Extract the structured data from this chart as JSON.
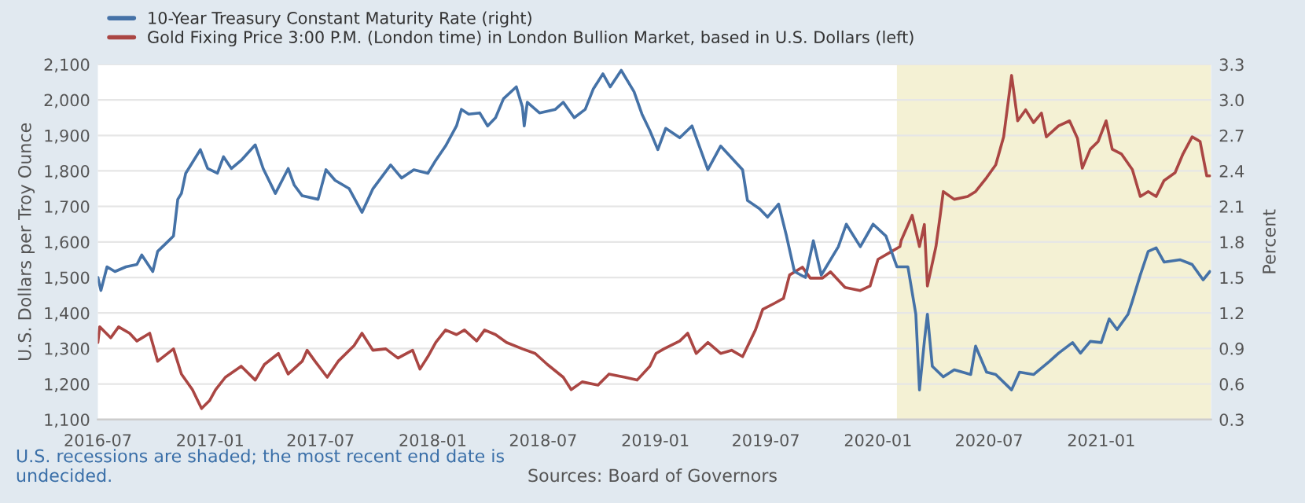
{
  "chart_data": {
    "type": "line",
    "ylabel": "U.S. Dollars per Troy Ounce",
    "y2label": "Percent",
    "annotations": [
      "U.S. recessions are shaded; the most recent end date is undecided.",
      "Sources: Board of Governors"
    ],
    "legend": "top left",
    "grid": "y",
    "xlim": [
      "2016-07-01",
      "2021-06-30"
    ],
    "xticks": [
      "2016-07",
      "2017-01",
      "2017-07",
      "2018-01",
      "2018-07",
      "2019-01",
      "2019-07",
      "2020-01",
      "2020-07",
      "2021-01"
    ],
    "ylim": [
      1100,
      2100
    ],
    "yticks": [
      {
        "value": 1100,
        "label": "1,100"
      },
      {
        "value": 1200,
        "label": "1,200"
      },
      {
        "value": 1300,
        "label": "1,300"
      },
      {
        "value": 1400,
        "label": "1,400"
      },
      {
        "value": 1500,
        "label": "1,500"
      },
      {
        "value": 1600,
        "label": "1,600"
      },
      {
        "value": 1700,
        "label": "1,700"
      },
      {
        "value": 1800,
        "label": "1,800"
      },
      {
        "value": 1900,
        "label": "1,900"
      },
      {
        "value": 2000,
        "label": "2,000"
      },
      {
        "value": 2100,
        "label": "2,100"
      }
    ],
    "y2lim": [
      0.3,
      3.3
    ],
    "y2ticks": [
      {
        "value": 0.3,
        "label": "0.3"
      },
      {
        "value": 0.6,
        "label": "0.6"
      },
      {
        "value": 0.9,
        "label": "0.9"
      },
      {
        "value": 1.2,
        "label": "1.2"
      },
      {
        "value": 1.5,
        "label": "1.5"
      },
      {
        "value": 1.8,
        "label": "1.8"
      },
      {
        "value": 2.1,
        "label": "2.1"
      },
      {
        "value": 2.4,
        "label": "2.4"
      },
      {
        "value": 2.7,
        "label": "2.7"
      },
      {
        "value": 3.0,
        "label": "3.0"
      },
      {
        "value": 3.3,
        "label": "3.3"
      }
    ],
    "bands": [
      {
        "axis": "x",
        "from": "2020-02-01",
        "to": "2021-06-30",
        "color": "#f4f1d4"
      }
    ],
    "series": [
      {
        "name": "10-Year Treasury Constant Maturity Rate (right)",
        "color": "#4572a7",
        "axis": "y2",
        "x": [
          "2016-07-01",
          "2016-07-06",
          "2016-07-16",
          "2016-07-29",
          "2016-08-16",
          "2016-09-03",
          "2016-09-11",
          "2016-09-29",
          "2016-10-07",
          "2016-10-25",
          "2016-11-02",
          "2016-11-09",
          "2016-11-15",
          "2016-11-22",
          "2016-12-16",
          "2016-12-28",
          "2017-01-13",
          "2017-01-23",
          "2017-02-05",
          "2017-02-21",
          "2017-03-16",
          "2017-03-29",
          "2017-04-18",
          "2017-05-09",
          "2017-05-19",
          "2017-06-01",
          "2017-06-27",
          "2017-07-10",
          "2017-07-25",
          "2017-08-17",
          "2017-09-07",
          "2017-09-25",
          "2017-10-24",
          "2017-11-11",
          "2017-12-01",
          "2017-12-24",
          "2018-01-06",
          "2018-01-22",
          "2018-02-09",
          "2018-02-17",
          "2018-03-01",
          "2018-03-19",
          "2018-04-01",
          "2018-04-14",
          "2018-04-27",
          "2018-05-18",
          "2018-05-28",
          "2018-05-31",
          "2018-06-05",
          "2018-06-25",
          "2018-07-21",
          "2018-08-03",
          "2018-08-21",
          "2018-09-08",
          "2018-09-21",
          "2018-10-07",
          "2018-10-19",
          "2018-11-06",
          "2018-11-27",
          "2018-12-10",
          "2018-12-23",
          "2019-01-05",
          "2019-01-18",
          "2019-02-10",
          "2019-03-02",
          "2019-03-28",
          "2019-04-18",
          "2019-05-24",
          "2019-06-01",
          "2019-06-21",
          "2019-07-04",
          "2019-07-22",
          "2019-08-04",
          "2019-08-17",
          "2019-09-04",
          "2019-09-17",
          "2019-09-30",
          "2019-10-28",
          "2019-11-10",
          "2019-12-03",
          "2019-12-24",
          "2020-01-14",
          "2020-02-01",
          "2020-02-19",
          "2020-03-03",
          "2020-03-09",
          "2020-03-17",
          "2020-03-22",
          "2020-03-30",
          "2020-04-17",
          "2020-05-05",
          "2020-06-01",
          "2020-06-09",
          "2020-06-27",
          "2020-07-12",
          "2020-08-07",
          "2020-08-20",
          "2020-09-12",
          "2020-10-08",
          "2020-10-23",
          "2020-11-15",
          "2020-11-28",
          "2020-12-14",
          "2021-01-01",
          "2021-01-14",
          "2021-01-27",
          "2021-02-14",
          "2021-02-21",
          "2021-03-06",
          "2021-03-19",
          "2021-04-01",
          "2021-04-14",
          "2021-05-10",
          "2021-05-30",
          "2021-06-17",
          "2021-06-28"
        ],
        "values": [
          1.5,
          1.39,
          1.59,
          1.55,
          1.59,
          1.61,
          1.69,
          1.55,
          1.72,
          1.81,
          1.85,
          2.16,
          2.21,
          2.38,
          2.58,
          2.42,
          2.38,
          2.52,
          2.42,
          2.49,
          2.62,
          2.42,
          2.21,
          2.42,
          2.28,
          2.19,
          2.16,
          2.41,
          2.32,
          2.25,
          2.05,
          2.25,
          2.45,
          2.34,
          2.41,
          2.38,
          2.49,
          2.61,
          2.78,
          2.92,
          2.88,
          2.89,
          2.78,
          2.85,
          3.01,
          3.11,
          2.94,
          2.78,
          2.98,
          2.89,
          2.92,
          2.98,
          2.85,
          2.92,
          3.09,
          3.22,
          3.11,
          3.25,
          3.07,
          2.88,
          2.74,
          2.58,
          2.76,
          2.68,
          2.78,
          2.41,
          2.61,
          2.41,
          2.15,
          2.08,
          2.01,
          2.12,
          1.85,
          1.55,
          1.5,
          1.81,
          1.52,
          1.76,
          1.95,
          1.76,
          1.95,
          1.85,
          1.59,
          1.59,
          1.19,
          0.55,
          0.96,
          1.19,
          0.75,
          0.66,
          0.72,
          0.68,
          0.92,
          0.7,
          0.68,
          0.55,
          0.7,
          0.68,
          0.79,
          0.86,
          0.95,
          0.86,
          0.96,
          0.95,
          1.15,
          1.06,
          1.19,
          1.3,
          1.52,
          1.72,
          1.75,
          1.63,
          1.65,
          1.61,
          1.48,
          1.55
        ]
      },
      {
        "name": "Gold Fixing Price 3:00 P.M. (London time) in London Bullion Market, based in U.S. Dollars (left)",
        "color": "#aa4643",
        "x": [
          "2016-07-01",
          "2016-07-04",
          "2016-07-22",
          "2016-08-04",
          "2016-08-22",
          "2016-09-03",
          "2016-09-24",
          "2016-10-07",
          "2016-11-02",
          "2016-11-15",
          "2016-12-03",
          "2016-12-18",
          "2016-12-31",
          "2017-01-10",
          "2017-01-26",
          "2017-02-21",
          "2017-03-16",
          "2017-03-31",
          "2017-04-23",
          "2017-05-09",
          "2017-06-01",
          "2017-06-09",
          "2017-06-22",
          "2017-07-12",
          "2017-07-30",
          "2017-08-25",
          "2017-09-07",
          "2017-09-25",
          "2017-10-16",
          "2017-11-05",
          "2017-11-29",
          "2017-12-11",
          "2017-12-24",
          "2018-01-06",
          "2018-01-22",
          "2018-02-09",
          "2018-02-22",
          "2018-03-14",
          "2018-03-27",
          "2018-04-14",
          "2018-05-02",
          "2018-05-28",
          "2018-06-18",
          "2018-07-08",
          "2018-08-03",
          "2018-08-16",
          "2018-09-03",
          "2018-09-29",
          "2018-10-17",
          "2018-11-12",
          "2018-12-02",
          "2018-12-23",
          "2019-01-02",
          "2019-01-15",
          "2019-02-10",
          "2019-02-23",
          "2019-03-09",
          "2019-03-28",
          "2019-04-18",
          "2019-05-06",
          "2019-05-24",
          "2019-06-14",
          "2019-06-26",
          "2019-07-15",
          "2019-07-30",
          "2019-08-09",
          "2019-08-30",
          "2019-09-12",
          "2019-10-02",
          "2019-10-15",
          "2019-11-08",
          "2019-12-03",
          "2019-12-19",
          "2020-01-01",
          "2020-01-24",
          "2020-02-06",
          "2020-02-08",
          "2020-02-26",
          "2020-03-09",
          "2020-03-17",
          "2020-03-22",
          "2020-04-05",
          "2020-04-12",
          "2020-04-17",
          "2020-05-05",
          "2020-05-27",
          "2020-06-09",
          "2020-06-27",
          "2020-07-12",
          "2020-07-25",
          "2020-08-07",
          "2020-08-17",
          "2020-08-30",
          "2020-09-12",
          "2020-09-25",
          "2020-10-03",
          "2020-10-23",
          "2020-11-10",
          "2020-11-23",
          "2020-12-01",
          "2020-12-14",
          "2020-12-27",
          "2021-01-09",
          "2021-01-19",
          "2021-02-03",
          "2021-02-21",
          "2021-03-06",
          "2021-03-19",
          "2021-04-01",
          "2021-04-14",
          "2021-05-02",
          "2021-05-15",
          "2021-05-30",
          "2021-06-12",
          "2021-06-23",
          "2021-06-28"
        ],
        "values": [
          1317,
          1361,
          1330,
          1361,
          1343,
          1321,
          1343,
          1264,
          1299,
          1228,
          1184,
          1131,
          1153,
          1184,
          1219,
          1250,
          1211,
          1255,
          1286,
          1228,
          1264,
          1295,
          1264,
          1219,
          1264,
          1308,
          1343,
          1295,
          1299,
          1273,
          1295,
          1242,
          1277,
          1317,
          1352,
          1339,
          1352,
          1321,
          1352,
          1339,
          1317,
          1299,
          1286,
          1255,
          1219,
          1184,
          1206,
          1197,
          1228,
          1219,
          1211,
          1250,
          1286,
          1299,
          1321,
          1343,
          1286,
          1317,
          1286,
          1295,
          1277,
          1352,
          1410,
          1427,
          1441,
          1507,
          1529,
          1498,
          1498,
          1516,
          1472,
          1463,
          1476,
          1551,
          1574,
          1587,
          1604,
          1675,
          1587,
          1649,
          1476,
          1587,
          1675,
          1742,
          1720,
          1728,
          1742,
          1781,
          1817,
          1896,
          2069,
          1941,
          1972,
          1936,
          1963,
          1896,
          1927,
          1941,
          1892,
          1808,
          1861,
          1883,
          1941,
          1861,
          1848,
          1804,
          1728,
          1742,
          1728,
          1773,
          1795,
          1848,
          1896,
          1883,
          1786,
          1786
        ]
      }
    ]
  }
}
